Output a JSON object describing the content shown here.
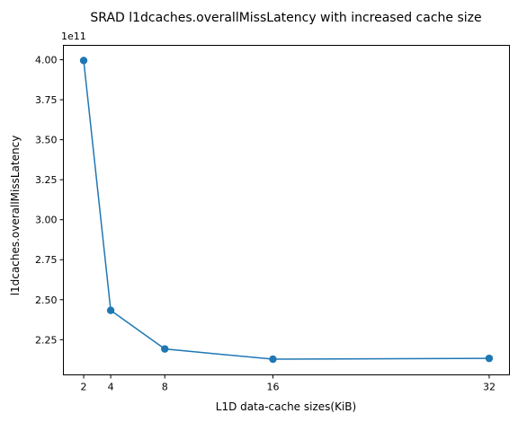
{
  "chart_data": {
    "type": "line",
    "title": "SRAD l1dcaches.overallMissLatency with increased cache size",
    "xlabel": "L1D data-cache sizes(KiB)",
    "ylabel": "l1dcaches.overallMissLatency",
    "y_offset_label": "1e11",
    "x": [
      2,
      4,
      8,
      16,
      32
    ],
    "y": [
      399500000000,
      243300000000,
      219200000000,
      212800000000,
      213300000000
    ],
    "xlim": [
      0.5,
      33.5
    ],
    "ylim": [
      2.03,
      4.09
    ],
    "x_ticks": [
      2,
      4,
      8,
      16,
      32
    ],
    "x_tick_labels": [
      "2",
      "4",
      "8",
      "16",
      "32"
    ],
    "y_ticks": [
      2.25,
      2.5,
      2.75,
      3.0,
      3.25,
      3.5,
      3.75,
      4.0
    ],
    "y_tick_labels": [
      "2.25",
      "2.50",
      "2.75",
      "3.00",
      "3.25",
      "3.50",
      "3.75",
      "4.00"
    ],
    "y_scale": 100000000000,
    "grid": false,
    "marker": "circle",
    "colors": {
      "line": "#1f77b4",
      "axes": "#000000"
    }
  }
}
